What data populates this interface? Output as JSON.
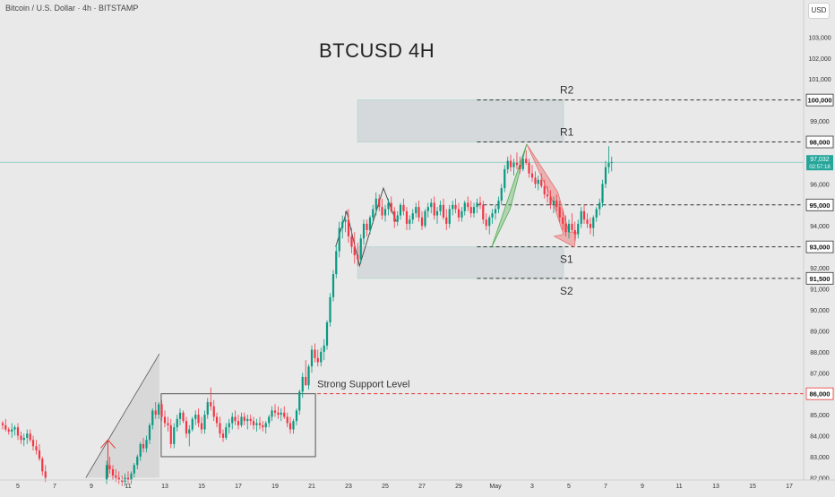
{
  "header": {
    "symbol": "Bitcoin / U.S. Dollar · 4h · BITSTAMP",
    "currency_button": "USD"
  },
  "chart_data": {
    "type": "candlestick",
    "title": "BTCUSD 4H",
    "ylim": [
      82000,
      103000
    ],
    "y_ticks": [
      103000,
      102000,
      101000,
      99000,
      97000,
      96000,
      94000,
      92000,
      91000,
      90000,
      89000,
      88000,
      87000,
      85000,
      84000,
      83000,
      82000
    ],
    "y_tick_labels": [
      "103,000",
      "102,000",
      "101,000",
      "99,000",
      "97,000",
      "96,000",
      "94,000",
      "92,000",
      "91,000",
      "90,000",
      "89,000",
      "88,000",
      "87,000",
      "85,000",
      "84,000",
      "83,000",
      "82,000"
    ],
    "x_ticks": [
      {
        "d": 5,
        "label": "5"
      },
      {
        "d": 7,
        "label": "7"
      },
      {
        "d": 9,
        "label": "9"
      },
      {
        "d": 11,
        "label": "11"
      },
      {
        "d": 13,
        "label": "13"
      },
      {
        "d": 15,
        "label": "15"
      },
      {
        "d": 17,
        "label": "17"
      },
      {
        "d": 19,
        "label": "19"
      },
      {
        "d": 21,
        "label": "21"
      },
      {
        "d": 23,
        "label": "23"
      },
      {
        "d": 25,
        "label": "25"
      },
      {
        "d": 27,
        "label": "27"
      },
      {
        "d": 29,
        "label": "29"
      },
      {
        "d": 31,
        "label": "May"
      },
      {
        "d": 33,
        "label": "3"
      },
      {
        "d": 35,
        "label": "5"
      },
      {
        "d": 37,
        "label": "7"
      },
      {
        "d": 39,
        "label": "9"
      },
      {
        "d": 41,
        "label": "11"
      },
      {
        "d": 43,
        "label": "13"
      },
      {
        "d": 45,
        "label": "15"
      },
      {
        "d": 47,
        "label": "17"
      }
    ],
    "levels": [
      {
        "value": 100000,
        "label": "100,000",
        "name": "R2",
        "color": "#333333"
      },
      {
        "value": 98000,
        "label": "98,000",
        "name": "R1",
        "color": "#333333"
      },
      {
        "value": 95000,
        "label": "95,000",
        "name": "",
        "color": "#333333"
      },
      {
        "value": 93000,
        "label": "93,000",
        "name": "S1",
        "color": "#333333"
      },
      {
        "value": 91500,
        "label": "91,500",
        "name": "S2",
        "color": "#333333"
      },
      {
        "value": 86000,
        "label": "86,000",
        "name": "Strong Support Level",
        "color": "#e53935"
      }
    ],
    "current_price": {
      "value": 97032,
      "label": "97,032",
      "countdown": "02:57:18",
      "color": "#26a69a"
    },
    "zones": [
      {
        "x0": 23.5,
        "x1": 34.7,
        "y0": 98000,
        "y1": 100000
      },
      {
        "x0": 23.5,
        "x1": 34.7,
        "y0": 91500,
        "y1": 93000
      }
    ],
    "consolidation_box": {
      "x0": 12.8,
      "x1": 21.2,
      "y0": 83000,
      "y1": 86000
    },
    "colors": {
      "up": "#089981",
      "down": "#f23645",
      "background": "#e9e9e9"
    },
    "candles": [
      [
        4.17,
        84600,
        84700,
        84300,
        84500
      ],
      [
        4.33,
        84500,
        84800,
        84200,
        84300
      ],
      [
        4.5,
        84300,
        84400,
        84050,
        84200
      ],
      [
        4.67,
        84200,
        84600,
        83900,
        84300
      ],
      [
        4.83,
        84300,
        84500,
        84000,
        84400
      ],
      [
        5.0,
        84400,
        84600,
        83800,
        84000
      ],
      [
        5.17,
        84000,
        84200,
        83600,
        83800
      ],
      [
        5.33,
        83800,
        84100,
        83500,
        83900
      ],
      [
        5.5,
        83900,
        84300,
        83600,
        84100
      ],
      [
        5.67,
        84100,
        84300,
        83700,
        83800
      ],
      [
        5.83,
        83800,
        84000,
        83300,
        83500
      ],
      [
        6.0,
        83500,
        83800,
        83100,
        83300
      ],
      [
        6.17,
        83300,
        83600,
        82800,
        82900
      ],
      [
        6.33,
        82900,
        83000,
        82100,
        82300
      ],
      [
        6.5,
        82300,
        82600,
        81800,
        82000
      ],
      [
        9.83,
        81900,
        82800,
        81700,
        82600
      ],
      [
        10.0,
        82600,
        83000,
        82200,
        82400
      ],
      [
        10.17,
        82400,
        82600,
        81900,
        82100
      ],
      [
        10.33,
        82100,
        82400,
        81800,
        82000
      ],
      [
        10.5,
        82000,
        82300,
        81700,
        81900
      ],
      [
        10.67,
        81900,
        82100,
        81600,
        81800
      ],
      [
        10.83,
        81800,
        82200,
        81600,
        82000
      ],
      [
        11.0,
        82000,
        82300,
        81700,
        81900
      ],
      [
        11.17,
        81900,
        82300,
        81700,
        82200
      ],
      [
        11.33,
        82200,
        82700,
        82000,
        82600
      ],
      [
        11.5,
        82600,
        83100,
        82400,
        83000
      ],
      [
        11.67,
        83000,
        83700,
        82800,
        83600
      ],
      [
        11.83,
        83600,
        83900,
        83200,
        83400
      ],
      [
        12.0,
        83400,
        84000,
        83200,
        83800
      ],
      [
        12.17,
        83800,
        84600,
        83600,
        84500
      ],
      [
        12.33,
        84500,
        85300,
        84300,
        85200
      ],
      [
        12.5,
        85200,
        85600,
        84800,
        85000
      ],
      [
        12.67,
        85000,
        85600,
        84800,
        85500
      ],
      [
        12.83,
        85500,
        85700,
        84700,
        84900
      ],
      [
        13.0,
        84900,
        85200,
        84400,
        84600
      ],
      [
        13.17,
        84600,
        84900,
        84200,
        84500
      ],
      [
        13.33,
        84500,
        84800,
        83400,
        83600
      ],
      [
        13.5,
        83600,
        84600,
        83400,
        84400
      ],
      [
        13.67,
        84400,
        85000,
        84200,
        84800
      ],
      [
        13.83,
        84800,
        85300,
        84500,
        85100
      ],
      [
        14.0,
        85100,
        85200,
        84600,
        84700
      ],
      [
        14.17,
        84700,
        84900,
        83900,
        84100
      ],
      [
        14.33,
        84100,
        84500,
        83500,
        84300
      ],
      [
        14.5,
        84300,
        84900,
        84200,
        84800
      ],
      [
        14.67,
        84800,
        85200,
        84500,
        85000
      ],
      [
        14.83,
        85000,
        85300,
        84400,
        84600
      ],
      [
        15.0,
        84600,
        84900,
        84100,
        84300
      ],
      [
        15.17,
        84300,
        85200,
        84100,
        85000
      ],
      [
        15.33,
        85000,
        85800,
        84800,
        85600
      ],
      [
        15.5,
        85600,
        86300,
        85200,
        85400
      ],
      [
        15.67,
        85400,
        85700,
        84700,
        84900
      ],
      [
        15.83,
        84900,
        85100,
        84400,
        84600
      ],
      [
        16.0,
        84600,
        84900,
        83900,
        84100
      ],
      [
        16.17,
        84100,
        84300,
        83700,
        83900
      ],
      [
        16.33,
        83900,
        84600,
        83800,
        84400
      ],
      [
        16.5,
        84400,
        84800,
        84100,
        84600
      ],
      [
        16.67,
        84600,
        85100,
        84300,
        84900
      ],
      [
        16.83,
        84900,
        85200,
        84500,
        84700
      ],
      [
        17.0,
        84700,
        85000,
        84300,
        84500
      ],
      [
        17.17,
        84500,
        85100,
        84400,
        84900
      ],
      [
        17.33,
        84900,
        85100,
        84500,
        84700
      ],
      [
        17.5,
        84700,
        85000,
        84300,
        84800
      ],
      [
        17.67,
        84800,
        85000,
        84500,
        84700
      ],
      [
        17.83,
        84700,
        84900,
        84300,
        84500
      ],
      [
        18.0,
        84500,
        84800,
        84200,
        84600
      ],
      [
        18.17,
        84600,
        84900,
        84300,
        84500
      ],
      [
        18.33,
        84500,
        84700,
        84200,
        84400
      ],
      [
        18.5,
        84400,
        84700,
        84100,
        84600
      ],
      [
        18.67,
        84600,
        85000,
        84400,
        84900
      ],
      [
        18.83,
        84900,
        85400,
        84700,
        85200
      ],
      [
        19.0,
        85200,
        85500,
        84900,
        85100
      ],
      [
        19.17,
        85100,
        85400,
        84800,
        85000
      ],
      [
        19.33,
        85000,
        85300,
        84700,
        85100
      ],
      [
        19.5,
        85100,
        85400,
        84800,
        84900
      ],
      [
        19.67,
        84900,
        85100,
        84400,
        84600
      ],
      [
        19.83,
        84600,
        84900,
        84100,
        84300
      ],
      [
        20.0,
        84300,
        84800,
        84100,
        84700
      ],
      [
        20.17,
        84700,
        85300,
        84500,
        85200
      ],
      [
        20.33,
        85200,
        86200,
        85000,
        86100
      ],
      [
        20.5,
        86100,
        87000,
        85800,
        86800
      ],
      [
        20.67,
        86800,
        87600,
        86400,
        86400
      ],
      [
        20.83,
        86400,
        87400,
        86200,
        87300
      ],
      [
        21.0,
        87300,
        88300,
        87000,
        88100
      ],
      [
        21.17,
        88100,
        88400,
        87500,
        87700
      ],
      [
        21.33,
        87700,
        88100,
        87300,
        87500
      ],
      [
        21.5,
        87500,
        88200,
        87300,
        88000
      ],
      [
        21.67,
        88000,
        88600,
        87600,
        88300
      ],
      [
        21.83,
        88300,
        89500,
        88100,
        89400
      ],
      [
        22.0,
        89400,
        90800,
        89200,
        90600
      ],
      [
        22.17,
        90600,
        91900,
        90400,
        91700
      ],
      [
        22.33,
        91700,
        93100,
        91500,
        92800
      ],
      [
        22.5,
        92800,
        94200,
        92500,
        93900
      ],
      [
        22.67,
        93900,
        94500,
        93400,
        94200
      ],
      [
        22.83,
        94200,
        94700,
        93700,
        94300
      ],
      [
        23.0,
        94300,
        94800,
        93200,
        93500
      ],
      [
        23.17,
        93500,
        93900,
        92700,
        93000
      ],
      [
        23.33,
        93000,
        93700,
        92200,
        92600
      ],
      [
        23.5,
        92600,
        93200,
        92100,
        92400
      ],
      [
        23.67,
        92400,
        93600,
        92200,
        93400
      ],
      [
        23.83,
        93400,
        94300,
        93100,
        94100
      ],
      [
        24.0,
        94100,
        94300,
        93500,
        93800
      ],
      [
        24.17,
        93800,
        94500,
        93600,
        94400
      ],
      [
        24.33,
        94400,
        95000,
        94100,
        94800
      ],
      [
        24.5,
        94800,
        95600,
        94500,
        95300
      ],
      [
        24.67,
        95300,
        95500,
        94700,
        94900
      ],
      [
        24.83,
        94900,
        95300,
        94300,
        94500
      ],
      [
        25.0,
        94500,
        95000,
        94200,
        94800
      ],
      [
        25.17,
        94800,
        95300,
        94500,
        95100
      ],
      [
        25.33,
        95100,
        95400,
        94600,
        94700
      ],
      [
        25.5,
        94700,
        94900,
        93900,
        94200
      ],
      [
        25.67,
        94200,
        94700,
        94000,
        94500
      ],
      [
        25.83,
        94500,
        95100,
        94300,
        95000
      ],
      [
        26.0,
        95000,
        95300,
        94500,
        94700
      ],
      [
        26.17,
        94700,
        94900,
        93800,
        94100
      ],
      [
        26.33,
        94100,
        94500,
        93800,
        94300
      ],
      [
        26.5,
        94300,
        94800,
        94100,
        94600
      ],
      [
        26.67,
        94600,
        95100,
        94400,
        94900
      ],
      [
        26.83,
        94900,
        95200,
        94200,
        94400
      ],
      [
        27.0,
        94400,
        94700,
        93800,
        94000
      ],
      [
        27.17,
        94000,
        94800,
        93900,
        94700
      ],
      [
        27.33,
        94700,
        95100,
        94400,
        94900
      ],
      [
        27.5,
        94900,
        95300,
        94600,
        95100
      ],
      [
        27.67,
        95100,
        95400,
        94300,
        94500
      ],
      [
        27.83,
        94500,
        94900,
        94100,
        94700
      ],
      [
        28.0,
        94700,
        95200,
        94500,
        95000
      ],
      [
        28.17,
        95000,
        95300,
        94300,
        94400
      ],
      [
        28.33,
        94400,
        94800,
        93800,
        94100
      ],
      [
        28.5,
        94100,
        95000,
        93900,
        94800
      ],
      [
        28.67,
        94800,
        95200,
        94500,
        95000
      ],
      [
        28.83,
        95000,
        95300,
        94600,
        94800
      ],
      [
        29.0,
        94800,
        95100,
        94200,
        94400
      ],
      [
        29.17,
        94400,
        94900,
        94200,
        94700
      ],
      [
        29.33,
        94700,
        95200,
        94500,
        95100
      ],
      [
        29.5,
        95100,
        95400,
        94700,
        94900
      ],
      [
        29.67,
        94900,
        95200,
        94400,
        94600
      ],
      [
        29.83,
        94600,
        95100,
        94400,
        94900
      ],
      [
        30.0,
        94900,
        95300,
        94600,
        95100
      ],
      [
        30.17,
        95100,
        95400,
        94800,
        95000
      ],
      [
        30.33,
        95000,
        95200,
        94100,
        94300
      ],
      [
        30.5,
        94300,
        94600,
        93800,
        94000
      ],
      [
        30.67,
        94000,
        94500,
        93600,
        94400
      ],
      [
        30.83,
        94400,
        94800,
        94100,
        94600
      ],
      [
        31.0,
        94600,
        95000,
        94300,
        94800
      ],
      [
        31.17,
        94800,
        95400,
        94600,
        95200
      ],
      [
        31.33,
        95200,
        96000,
        95000,
        95800
      ],
      [
        31.5,
        95800,
        96900,
        95600,
        96700
      ],
      [
        31.67,
        96700,
        97300,
        96500,
        97100
      ],
      [
        31.83,
        97100,
        97400,
        96600,
        96800
      ],
      [
        32.0,
        96800,
        97200,
        96400,
        97000
      ],
      [
        32.17,
        97000,
        97500,
        96700,
        96900
      ],
      [
        32.33,
        96900,
        97300,
        96500,
        96700
      ],
      [
        32.5,
        96700,
        97400,
        96600,
        97200
      ],
      [
        32.67,
        97200,
        97600,
        96900,
        97000
      ],
      [
        32.83,
        97000,
        97200,
        96300,
        96500
      ],
      [
        33.0,
        96500,
        96900,
        96100,
        96300
      ],
      [
        33.17,
        96300,
        96600,
        95800,
        96000
      ],
      [
        33.33,
        96000,
        96400,
        95700,
        96200
      ],
      [
        33.5,
        96200,
        96500,
        95800,
        95900
      ],
      [
        33.67,
        95900,
        96200,
        95300,
        95500
      ],
      [
        33.83,
        95500,
        95900,
        95100,
        95400
      ],
      [
        34.0,
        95400,
        95700,
        94800,
        95000
      ],
      [
        34.17,
        95000,
        95400,
        94600,
        95200
      ],
      [
        34.33,
        95200,
        95500,
        94700,
        94900
      ],
      [
        34.5,
        94900,
        95200,
        94200,
        94400
      ],
      [
        34.67,
        94400,
        94800,
        93800,
        94100
      ],
      [
        34.83,
        94100,
        94500,
        93500,
        93700
      ],
      [
        35.0,
        93700,
        94300,
        93400,
        94100
      ],
      [
        35.17,
        94100,
        94600,
        93700,
        93800
      ],
      [
        35.33,
        93800,
        94200,
        93300,
        93600
      ],
      [
        35.5,
        93600,
        94300,
        93400,
        94100
      ],
      [
        35.67,
        94100,
        94900,
        93900,
        94700
      ],
      [
        35.83,
        94700,
        95000,
        94100,
        94300
      ],
      [
        36.0,
        94300,
        94600,
        93900,
        94100
      ],
      [
        36.17,
        94100,
        94400,
        93600,
        93900
      ],
      [
        36.33,
        93900,
        94500,
        93500,
        94400
      ],
      [
        36.5,
        94400,
        94900,
        94200,
        94800
      ],
      [
        36.67,
        94800,
        95300,
        94500,
        95100
      ],
      [
        36.83,
        95100,
        96200,
        94900,
        96000
      ],
      [
        37.0,
        96000,
        97100,
        95800,
        96800
      ],
      [
        37.17,
        96800,
        97800,
        96500,
        97000
      ],
      [
        37.33,
        97000,
        97300,
        96600,
        97032
      ]
    ]
  }
}
